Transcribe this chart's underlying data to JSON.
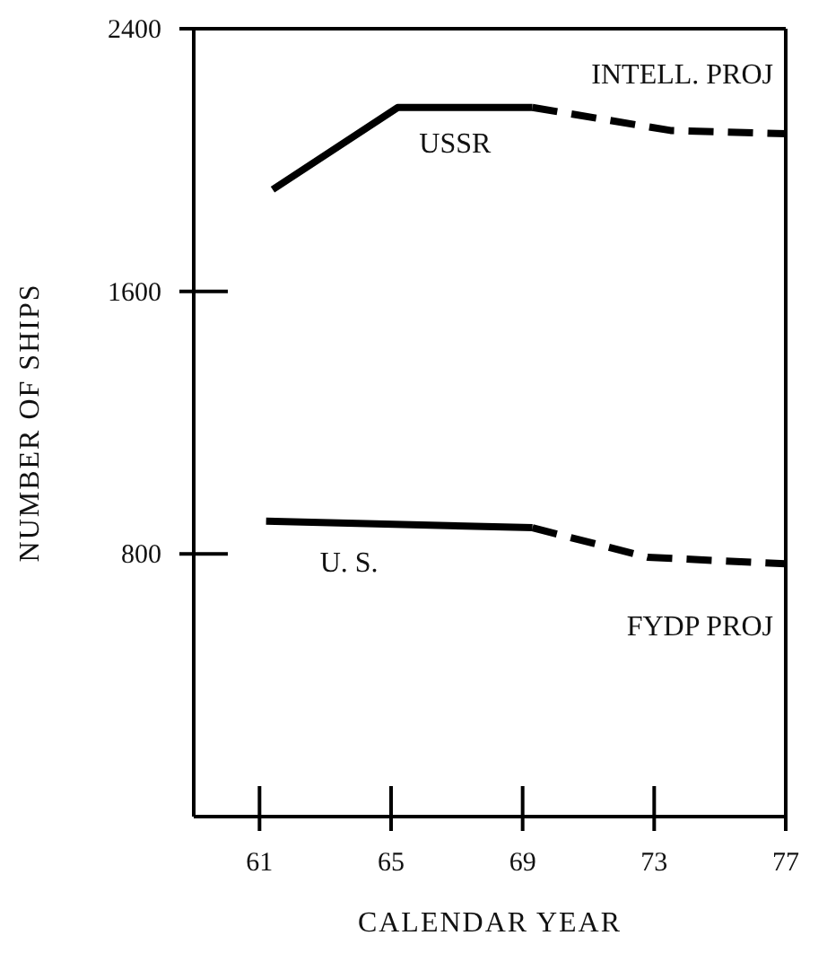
{
  "chart_data": {
    "type": "line",
    "xlabel": "CALENDAR YEAR",
    "ylabel": "NUMBER OF SHIPS",
    "xlim": [
      59,
      77
    ],
    "xticks": [
      61,
      65,
      69,
      73,
      77
    ],
    "ylim": [
      0,
      2400
    ],
    "yticks": [
      800,
      1600,
      2400
    ],
    "marker": "none",
    "series": [
      {
        "name": "USSR",
        "color": "#000000",
        "line_style": "solid",
        "x": [
          61.4,
          65.2,
          69.3
        ],
        "values": [
          1910,
          2160,
          2160
        ]
      },
      {
        "name": "INTELL. PROJ",
        "color": "#000000",
        "line_style": "dashed",
        "x": [
          69.3,
          73.5,
          77
        ],
        "values": [
          2160,
          2090,
          2080
        ]
      },
      {
        "name": "U. S.",
        "color": "#000000",
        "line_style": "solid",
        "x": [
          61.2,
          69.3
        ],
        "values": [
          900,
          880
        ]
      },
      {
        "name": "FYDP PROJ",
        "color": "#000000",
        "line_style": "dashed",
        "x": [
          69.3,
          72.8,
          77
        ],
        "values": [
          880,
          790,
          770
        ]
      }
    ]
  }
}
